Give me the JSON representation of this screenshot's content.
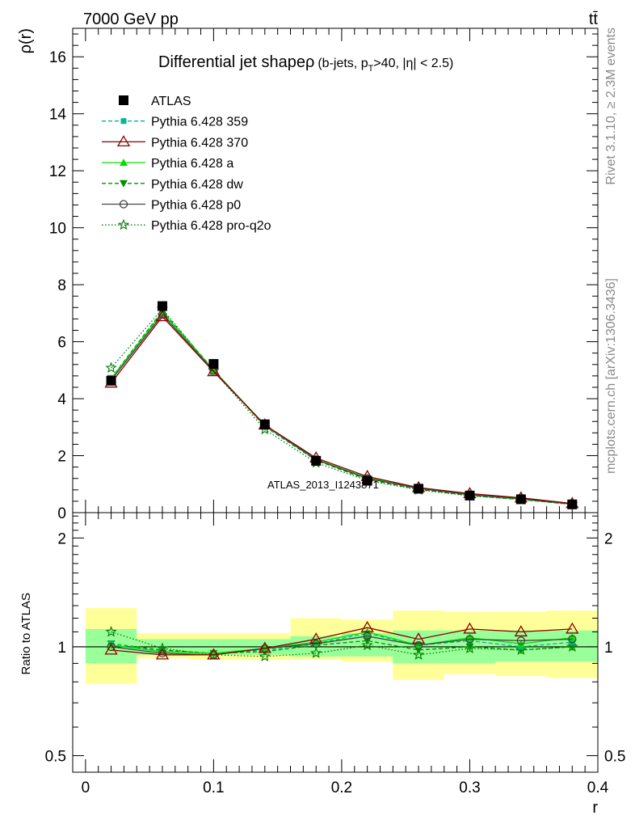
{
  "header": {
    "energy_label": "7000 GeV pp",
    "process_label": "tt̄"
  },
  "side_labels": {
    "rivet": "Rivet 3.1.10, ≥ 2.3M events",
    "mcplots": "mcplots.cern.ch [arXiv:1306.3436]"
  },
  "watermark": "ATLAS_2013_I1243871",
  "legend_placement": "top-left",
  "colors": {
    "atlas": "#000000",
    "p359": "#00b890",
    "p370": "#8b0000",
    "pa": "#00e000",
    "pdw": "#009000",
    "pp0": "#444444",
    "pq2o": "#007a00",
    "band_inner": "#99ff99",
    "band_outer": "#ffff99"
  },
  "chart_data": [
    {
      "type": "line",
      "title_main": "Differential jet shapeρ",
      "title_sub": "(b-jets, p",
      "title_sub_idx": "T",
      "title_sub_tail": ">40, |η| < 2.5)",
      "ylabel": "ρ(r)",
      "xlabel": "r",
      "xlim": [
        -0.01,
        0.4
      ],
      "ylim": [
        0,
        17
      ],
      "x_ticks": [
        0,
        0.1,
        0.2,
        0.3,
        0.4
      ],
      "x_tick_labels": [
        "0",
        "0.1",
        "0.2",
        "0.3",
        "0.4"
      ],
      "y_ticks": [
        0,
        2,
        4,
        6,
        8,
        10,
        12,
        14,
        16
      ],
      "y_tick_labels": [
        "0",
        "2",
        "4",
        "6",
        "8",
        "10",
        "12",
        "14",
        "16"
      ],
      "x": [
        0.02,
        0.06,
        0.1,
        0.14,
        0.18,
        0.22,
        0.26,
        0.3,
        0.34,
        0.38
      ],
      "series": [
        {
          "key": "atlas",
          "name": "ATLAS",
          "marker": "square",
          "dash": "none",
          "values": [
            4.63,
            7.25,
            5.22,
            3.1,
            1.82,
            1.12,
            0.84,
            0.6,
            0.47,
            0.29
          ]
        },
        {
          "key": "p359",
          "name": "Pythia 6.428 359",
          "marker": "small-square",
          "dash": "5,3",
          "values": [
            4.72,
            7.0,
            5.0,
            3.05,
            1.86,
            1.22,
            0.85,
            0.63,
            0.47,
            0.3
          ]
        },
        {
          "key": "p370",
          "name": "Pythia 6.428 370",
          "marker": "open-triangle",
          "dash": "none",
          "values": [
            4.55,
            6.88,
            4.95,
            3.08,
            1.92,
            1.27,
            0.88,
            0.67,
            0.52,
            0.32
          ]
        },
        {
          "key": "pa",
          "name": "Pythia 6.428 a",
          "marker": "triangle",
          "dash": "none",
          "values": [
            4.7,
            7.03,
            5.0,
            3.08,
            1.88,
            1.23,
            0.85,
            0.64,
            0.48,
            0.31
          ]
        },
        {
          "key": "pdw",
          "name": "Pythia 6.428 dw",
          "marker": "triangle-down",
          "dash": "5,3",
          "values": [
            4.72,
            7.08,
            5.02,
            3.02,
            1.84,
            1.16,
            0.82,
            0.6,
            0.46,
            0.29
          ]
        },
        {
          "key": "pp0",
          "name": "Pythia 6.428 p0",
          "marker": "open-circle",
          "dash": "none",
          "values": [
            4.65,
            6.95,
            4.98,
            3.08,
            1.86,
            1.2,
            0.85,
            0.63,
            0.49,
            0.3
          ]
        },
        {
          "key": "pq2o",
          "name": "Pythia 6.428 pro-q2o",
          "marker": "star",
          "dash": "1.5,2.5",
          "values": [
            5.08,
            7.15,
            4.98,
            2.92,
            1.75,
            1.13,
            0.8,
            0.59,
            0.46,
            0.29
          ]
        }
      ]
    },
    {
      "type": "line",
      "title": "",
      "ylabel": "Ratio to ATLAS",
      "xlabel": "r",
      "xlim": [
        -0.01,
        0.4
      ],
      "ylim": [
        0.45,
        2.35
      ],
      "log_y": true,
      "y_ticks": [
        0.5,
        1,
        2
      ],
      "y_tick_labels": [
        "0.5",
        "1",
        "2"
      ],
      "x_edges": [
        0,
        0.04,
        0.08,
        0.12,
        0.16,
        0.2,
        0.24,
        0.28,
        0.32,
        0.36,
        0.4
      ],
      "band_inner": [
        [
          0.9,
          1.12
        ],
        [
          0.95,
          1.05
        ],
        [
          0.95,
          1.05
        ],
        [
          0.95,
          1.05
        ],
        [
          0.94,
          1.07
        ],
        [
          0.94,
          1.09
        ],
        [
          0.9,
          1.11
        ],
        [
          0.9,
          1.11
        ],
        [
          0.91,
          1.11
        ],
        [
          0.91,
          1.11
        ]
      ],
      "band_outer": [
        [
          0.79,
          1.28
        ],
        [
          0.93,
          1.09
        ],
        [
          0.92,
          1.09
        ],
        [
          0.92,
          1.09
        ],
        [
          0.92,
          1.2
        ],
        [
          0.91,
          1.19
        ],
        [
          0.81,
          1.26
        ],
        [
          0.84,
          1.25
        ],
        [
          0.83,
          1.25
        ],
        [
          0.82,
          1.26
        ]
      ],
      "x": [
        0.02,
        0.06,
        0.1,
        0.14,
        0.18,
        0.22,
        0.26,
        0.3,
        0.34,
        0.38
      ],
      "series": [
        {
          "key": "p359",
          "values": [
            1.02,
            0.97,
            0.96,
            0.98,
            1.02,
            1.09,
            1.01,
            1.04,
            1.0,
            1.03
          ]
        },
        {
          "key": "p370",
          "values": [
            0.98,
            0.95,
            0.95,
            0.99,
            1.05,
            1.13,
            1.05,
            1.12,
            1.1,
            1.12
          ]
        },
        {
          "key": "pa",
          "values": [
            1.01,
            0.97,
            0.96,
            0.99,
            1.03,
            1.1,
            1.01,
            1.06,
            1.02,
            1.06
          ]
        },
        {
          "key": "pdw",
          "values": [
            1.02,
            0.98,
            0.96,
            0.97,
            1.01,
            1.04,
            0.98,
            1.0,
            0.98,
            1.0
          ]
        },
        {
          "key": "pp0",
          "values": [
            1.0,
            0.96,
            0.95,
            0.99,
            1.02,
            1.07,
            1.01,
            1.05,
            1.04,
            1.05
          ]
        },
        {
          "key": "pq2o",
          "values": [
            1.1,
            0.99,
            0.95,
            0.94,
            0.96,
            1.01,
            0.95,
            0.99,
            0.98,
            1.0
          ]
        }
      ]
    }
  ]
}
